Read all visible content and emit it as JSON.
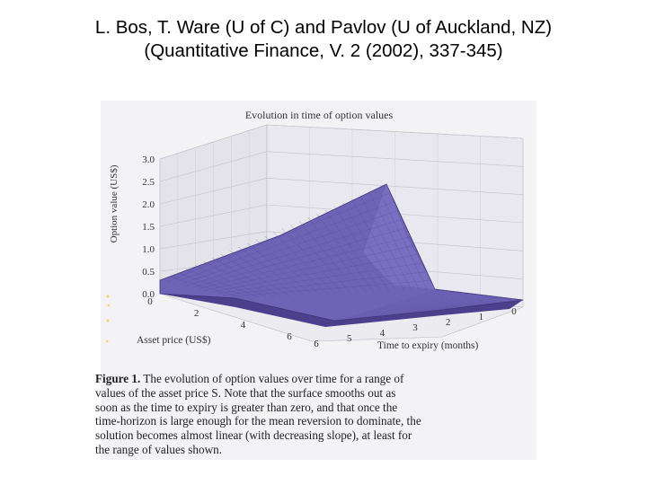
{
  "title": {
    "line1": "L. Bos, T. Ware (U of C) and Pavlov (U of Auckland, NZ)",
    "line2": "(Quantitative Finance, V. 2 (2002), 337-345)"
  },
  "chart_data": {
    "type": "surface",
    "title": "Evolution in time of option values",
    "zlabel": "Option value (US$)",
    "xlabel": "Asset price (US$)",
    "ylabel": "Time to expiry (months)",
    "z_ticks": [
      "0.0",
      "0.5",
      "1.0",
      "1.5",
      "2.0",
      "2.5",
      "3.0"
    ],
    "x_ticks": [
      "0",
      "2",
      "4",
      "6"
    ],
    "y_ticks": [
      "0",
      "1",
      "2",
      "3",
      "4",
      "5",
      "6"
    ],
    "zlim": [
      0,
      3
    ],
    "xlim": [
      0,
      6
    ],
    "ylim": [
      0,
      6
    ],
    "grid": true,
    "surface_color": "#6f63b5"
  },
  "caption": {
    "label": "Figure 1.",
    "lines": [
      "The evolution of option values over time for a range of",
      "values of the asset price S.  Note that the surface smooths out as",
      "soon as the time to expiry is greater than zero, and that once the",
      "time-horizon is large enough for the mean reversion to dominate, the",
      "solution becomes almost linear (with decreasing slope), at least for",
      "the range of values shown."
    ]
  }
}
